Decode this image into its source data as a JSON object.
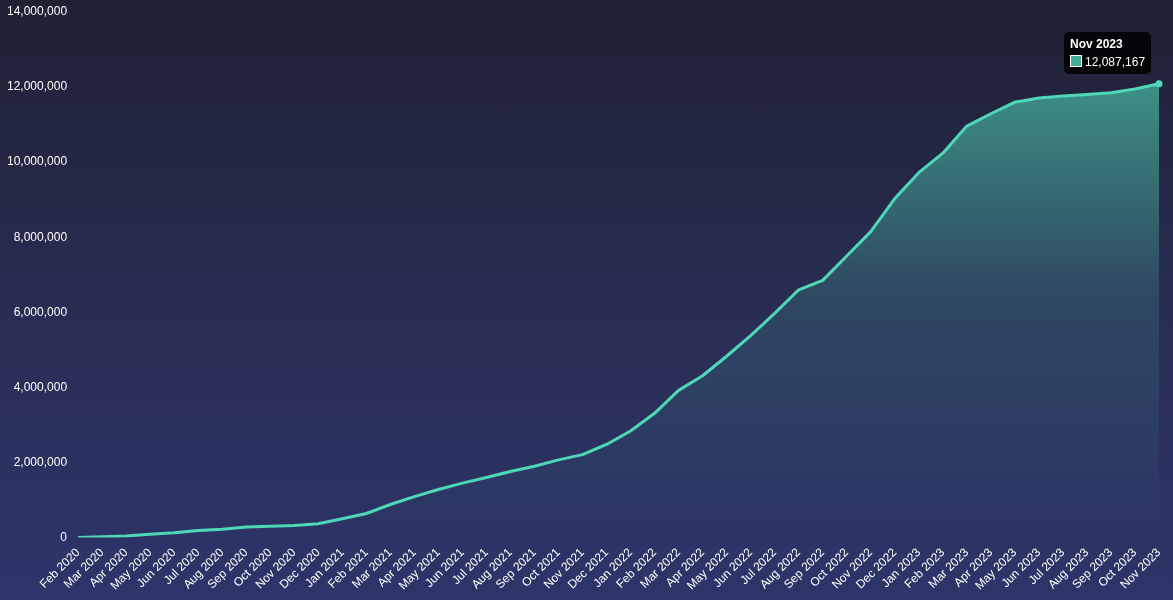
{
  "chart_data": {
    "type": "area",
    "categories": [
      "Feb 2020",
      "Mar 2020",
      "Apr 2020",
      "May 2020",
      "Jun 2020",
      "Jul 2020",
      "Aug 2020",
      "Sep 2020",
      "Oct 2020",
      "Nov 2020",
      "Dec 2020",
      "Jan 2021",
      "Feb 2021",
      "Mar 2021",
      "Apr 2021",
      "May 2021",
      "Jun 2021",
      "Jul 2021",
      "Aug 2021",
      "Sep 2021",
      "Oct 2021",
      "Nov 2021",
      "Dec 2021",
      "Jan 2022",
      "Feb 2022",
      "Mar 2022",
      "Apr 2022",
      "May 2022",
      "Jun 2022",
      "Jul 2022",
      "Aug 2022",
      "Sep 2022",
      "Oct 2022",
      "Nov 2022",
      "Dec 2022",
      "Jan 2023",
      "Feb 2023",
      "Mar 2023",
      "Apr 2023",
      "May 2023",
      "Jun 2023",
      "Jul 2023",
      "Aug 2023",
      "Sep 2023",
      "Oct 2023",
      "Nov 2023"
    ],
    "series": [
      {
        "color": "#4fd8b8",
        "values": [
          0,
          20000,
          40000,
          90000,
          130000,
          190000,
          220000,
          280000,
          300000,
          320000,
          370000,
          500000,
          640000,
          880000,
          1090000,
          1280000,
          1450000,
          1600000,
          1760000,
          1900000,
          2070000,
          2210000,
          2480000,
          2840000,
          3310000,
          3920000,
          4310000,
          4830000,
          5380000,
          5970000,
          6600000,
          6850000,
          7500000,
          8150000,
          9030000,
          9720000,
          10240000,
          10960000,
          11290000,
          11600000,
          11710000,
          11760000,
          11800000,
          11850000,
          11950000,
          12087167
        ]
      }
    ],
    "ylim": [
      0,
      14000000
    ],
    "yticks": [
      {
        "value": 0,
        "label": "0"
      },
      {
        "value": 2000000,
        "label": "2,000,000"
      },
      {
        "value": 4000000,
        "label": "4,000,000"
      },
      {
        "value": 6000000,
        "label": "6,000,000"
      },
      {
        "value": 8000000,
        "label": "8,000,000"
      },
      {
        "value": 10000000,
        "label": "10,000,000"
      },
      {
        "value": 12000000,
        "label": "12,000,000"
      },
      {
        "value": 14000000,
        "label": "14,000,000"
      }
    ],
    "annotations": [
      "Nov 2023",
      {
        "text": "12,087,167",
        "x": "Nov 2023",
        "y": 12087167
      }
    ]
  }
}
